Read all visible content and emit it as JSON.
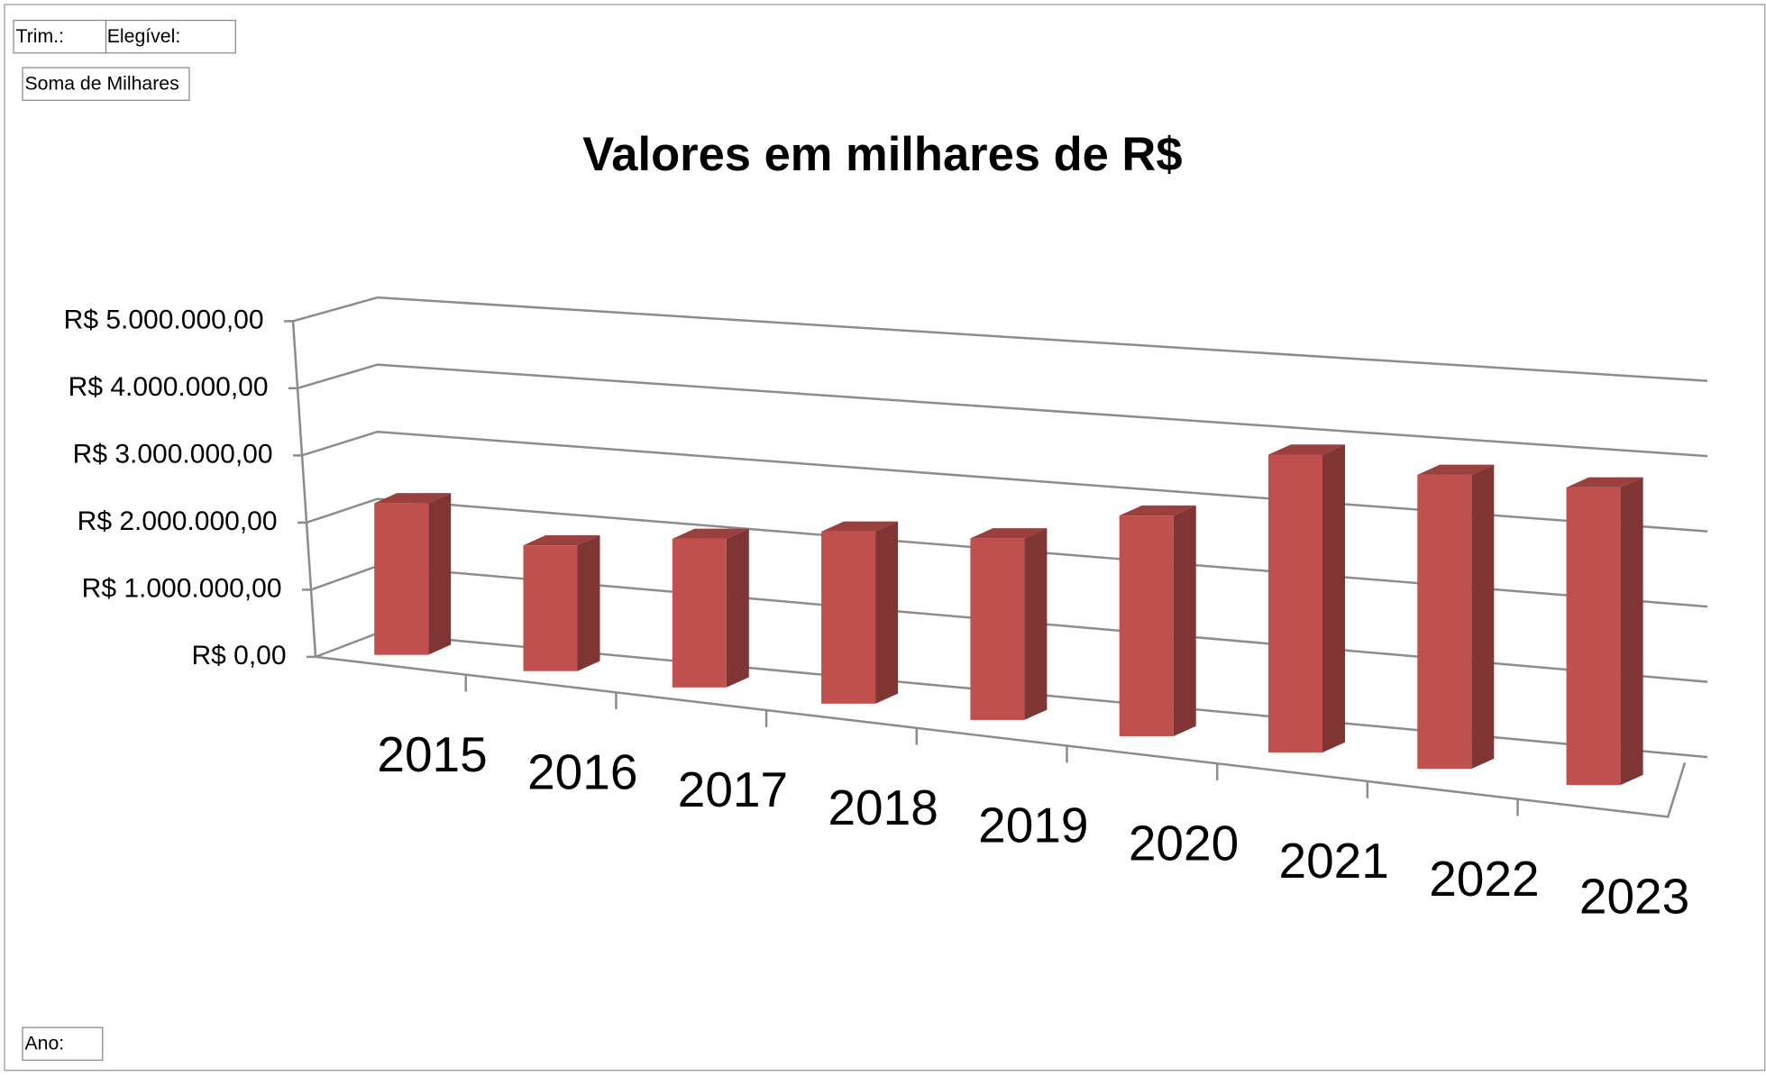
{
  "chart_data": {
    "type": "bar3d",
    "title": "Valores em milhares de R$",
    "categories": [
      "2015",
      "2016",
      "2017",
      "2018",
      "2019",
      "2020",
      "2021",
      "2022",
      "2023"
    ],
    "values": [
      2200000,
      1800000,
      2100000,
      2400000,
      2500000,
      3000000,
      4000000,
      3900000,
      3900000
    ],
    "color": "#c0504d",
    "ylim": [
      0,
      5000000
    ],
    "yticks": [
      {
        "value": 0,
        "label": "R$ 0,00"
      },
      {
        "value": 1000000,
        "label": "R$ 1.000.000,00"
      },
      {
        "value": 2000000,
        "label": "R$ 2.000.000,00"
      },
      {
        "value": 3000000,
        "label": "R$ 3.000.000,00"
      },
      {
        "value": 4000000,
        "label": "R$ 4.000.000,00"
      },
      {
        "value": 5000000,
        "label": "R$ 5.000.000,00"
      }
    ],
    "grid": true
  },
  "pivot_fields": {
    "report_filters": [
      "Trim.:",
      "Elegível:"
    ],
    "values_field": "Soma de Milhares",
    "axis_field": "Ano:"
  }
}
